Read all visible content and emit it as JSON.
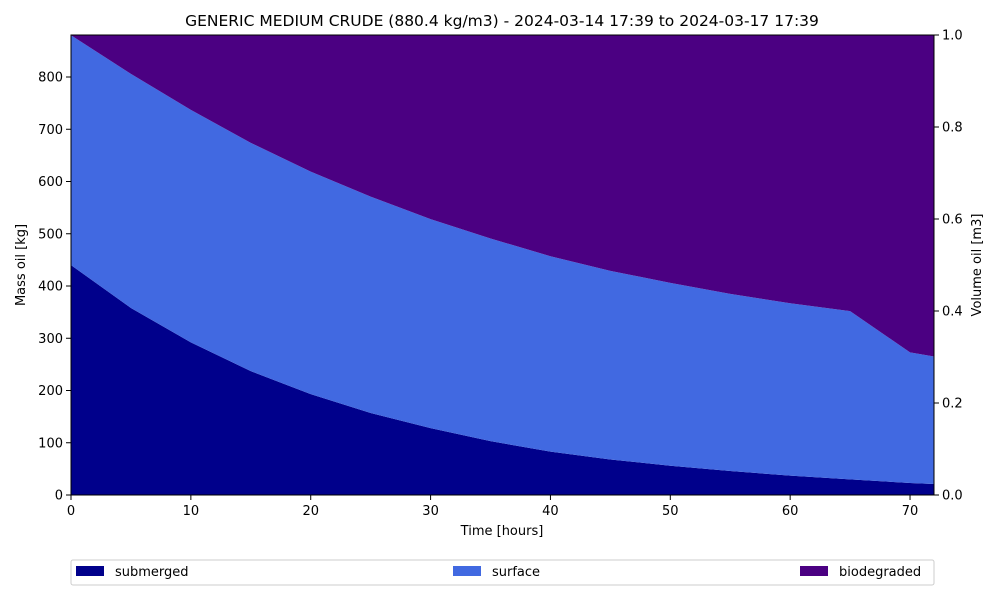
{
  "chart_data": {
    "type": "area",
    "stacked": true,
    "title": "GENERIC MEDIUM CRUDE (880.4 kg/m3) - 2024-03-14 17:39 to 2024-03-17 17:39",
    "xlabel": "Time  [hours]",
    "ylabel": "Mass oil  [kg]",
    "ylabel_right": "Volume oil [m3]",
    "xlim": [
      0,
      72
    ],
    "ylim": [
      0,
      880.4
    ],
    "ylim_right": [
      0,
      1.0
    ],
    "x_ticks": [
      0,
      10,
      20,
      30,
      40,
      50,
      60,
      70
    ],
    "y_ticks": [
      0,
      100,
      200,
      300,
      400,
      500,
      600,
      700,
      800
    ],
    "y_ticks_right": [
      "0.0",
      "0.2",
      "0.4",
      "0.6",
      "0.8",
      "1.0"
    ],
    "grid": false,
    "legend_position": "bottom",
    "x": [
      0,
      5,
      10,
      15,
      20,
      25,
      30,
      35,
      40,
      45,
      50,
      55,
      60,
      65,
      70,
      72
    ],
    "series": [
      {
        "name": "submerged",
        "color": "#00008b",
        "values": [
          440,
          358,
          292,
          237,
          193,
          157,
          128,
          103,
          83,
          68,
          56,
          46,
          37,
          30,
          23,
          21
        ]
      },
      {
        "name": "surface",
        "color": "#4169e1",
        "values": [
          440,
          448,
          445,
          437,
          426,
          414,
          400,
          388,
          374,
          361,
          350,
          339,
          330,
          322,
          250,
          244
        ]
      },
      {
        "name": "biodegraded",
        "color": "#4b0082",
        "values": [
          0.4,
          74.4,
          143.4,
          206.4,
          261.4,
          309.4,
          352.4,
          389.4,
          423.4,
          451.4,
          474.4,
          495.4,
          513.4,
          528.4,
          607.4,
          615.4
        ]
      }
    ]
  }
}
